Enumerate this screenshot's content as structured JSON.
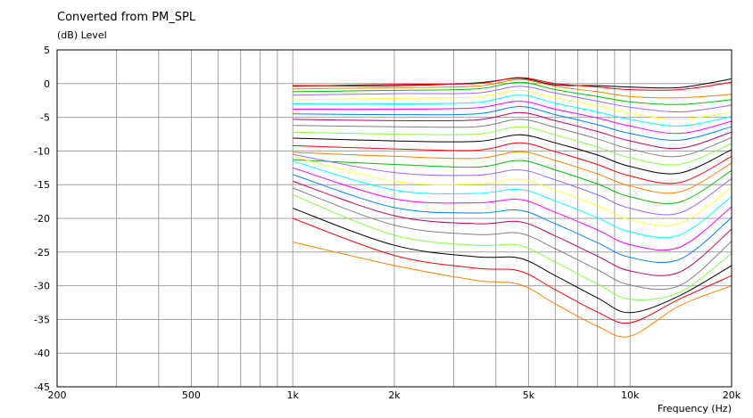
{
  "chart_data": {
    "type": "line",
    "title": "Converted from PM_SPL",
    "ylabel": "(dB)  Level",
    "xlabel": "Frequency  (Hz)",
    "x_scale": "log",
    "xlim": [
      200,
      20000
    ],
    "ylim": [
      -45,
      5
    ],
    "grid": true,
    "y_ticks": [
      "5",
      "0",
      "-5",
      "-10",
      "-15",
      "-20",
      "-25",
      "-30",
      "-35",
      "-40",
      "-45"
    ],
    "x_ticks": [
      "200",
      "500",
      "1k",
      "2k",
      "5k",
      "10k",
      "20k"
    ],
    "x_tick_values": [
      200,
      500,
      1000,
      2000,
      5000,
      10000,
      20000
    ],
    "x_minor_grid": [
      300,
      400,
      600,
      700,
      800,
      900,
      3000,
      4000,
      6000,
      7000,
      8000,
      9000
    ],
    "series_colors": [
      "#000000",
      "#ff0000",
      "#ff8000",
      "#00c000",
      "#9966ff",
      "#ffff40",
      "#00ffff",
      "#ff00ff",
      "#0080ff",
      "#c00060",
      "#808080",
      "#80ff40"
    ],
    "series_x": [
      1000,
      2000,
      3500,
      4700,
      6000,
      8000,
      10000,
      14000,
      20000
    ],
    "series": [
      {
        "values": [
          -0.3,
          -0.3,
          0.1,
          0.8,
          -0.2,
          -0.3,
          -0.5,
          -0.6,
          0.7
        ]
      },
      {
        "values": [
          -0.4,
          -0.1,
          0.0,
          0.9,
          0.0,
          -0.5,
          -0.9,
          -0.9,
          0.2
        ]
      },
      {
        "values": [
          -0.8,
          -0.6,
          -0.4,
          0.6,
          -0.4,
          -1.2,
          -1.9,
          -2.1,
          -1.6
        ]
      },
      {
        "values": [
          -1.2,
          -1.0,
          -0.8,
          0.2,
          -0.9,
          -1.9,
          -2.7,
          -3.1,
          -2.4
        ]
      },
      {
        "values": [
          -1.7,
          -1.5,
          -1.4,
          -0.4,
          -1.4,
          -2.6,
          -3.5,
          -4.2,
          -3.2
        ]
      },
      {
        "values": [
          -2.4,
          -2.2,
          -2.0,
          -1.0,
          -2.1,
          -3.3,
          -4.4,
          -5.3,
          -4.2
        ]
      },
      {
        "values": [
          -3.0,
          -3.0,
          -2.8,
          -1.7,
          -2.9,
          -4.2,
          -5.3,
          -6.3,
          -4.9
        ]
      },
      {
        "values": [
          -3.8,
          -3.8,
          -3.6,
          -2.6,
          -3.8,
          -5.1,
          -6.3,
          -7.4,
          -5.6
        ]
      },
      {
        "values": [
          -4.5,
          -4.6,
          -4.5,
          -3.4,
          -4.6,
          -6.1,
          -7.4,
          -8.4,
          -6.4
        ]
      },
      {
        "values": [
          -5.3,
          -5.5,
          -5.4,
          -4.3,
          -5.5,
          -7.1,
          -8.5,
          -9.6,
          -7.2
        ]
      },
      {
        "values": [
          -6.2,
          -6.4,
          -6.4,
          -5.3,
          -6.5,
          -8.2,
          -9.7,
          -10.8,
          -8.0
        ]
      },
      {
        "values": [
          -7.2,
          -7.5,
          -7.5,
          -6.4,
          -7.6,
          -9.4,
          -11.0,
          -12.0,
          -8.9
        ]
      },
      {
        "values": [
          -8.1,
          -8.5,
          -8.6,
          -7.6,
          -8.8,
          -10.6,
          -12.3,
          -13.3,
          -9.8
        ]
      },
      {
        "values": [
          -9.2,
          -9.7,
          -9.9,
          -8.8,
          -10.1,
          -12.0,
          -13.7,
          -14.7,
          -10.8
        ]
      },
      {
        "values": [
          -10.2,
          -10.8,
          -11.1,
          -10.1,
          -11.4,
          -13.4,
          -15.2,
          -16.1,
          -11.8
        ]
      },
      {
        "values": [
          -11.3,
          -12.0,
          -12.4,
          -11.4,
          -12.8,
          -14.9,
          -16.8,
          -17.6,
          -12.9
        ]
      },
      {
        "values": [
          -10.5,
          -13.2,
          -13.6,
          -12.8,
          -14.3,
          -16.5,
          -18.5,
          -19.2,
          -14.1
        ]
      },
      {
        "values": [
          -10.8,
          -14.5,
          -14.9,
          -14.2,
          -15.8,
          -18.1,
          -20.2,
          -20.8,
          -15.4
        ]
      },
      {
        "values": [
          -11.5,
          -15.8,
          -16.3,
          -15.7,
          -17.4,
          -19.9,
          -22.0,
          -22.5,
          -16.8
        ]
      },
      {
        "values": [
          -12.5,
          -17.1,
          -17.7,
          -17.2,
          -19.1,
          -21.7,
          -23.9,
          -24.3,
          -18.3
        ]
      },
      {
        "values": [
          -13.5,
          -18.4,
          -19.2,
          -18.8,
          -20.8,
          -23.6,
          -25.8,
          -26.1,
          -19.9
        ]
      },
      {
        "values": [
          -14.5,
          -19.6,
          -20.8,
          -20.5,
          -22.6,
          -25.6,
          -27.8,
          -28.0,
          -21.6
        ]
      },
      {
        "values": [
          -15.5,
          -21.0,
          -22.4,
          -22.2,
          -24.5,
          -27.6,
          -29.9,
          -30.0,
          -23.4
        ]
      },
      {
        "values": [
          -16.5,
          -22.5,
          -24.0,
          -24.0,
          -26.5,
          -29.7,
          -32.0,
          -31.0,
          -25.2
        ]
      },
      {
        "values": [
          -18.5,
          -24.0,
          -25.7,
          -25.9,
          -28.5,
          -31.8,
          -34.0,
          -31.5,
          -27.0
        ]
      },
      {
        "values": [
          -20.0,
          -25.5,
          -27.4,
          -27.8,
          -30.6,
          -33.9,
          -35.5,
          -32.0,
          -28.5
        ]
      },
      {
        "values": [
          -23.5,
          -27.0,
          -29.2,
          -29.8,
          -32.7,
          -36.0,
          -37.5,
          -33.0,
          -30.0
        ]
      }
    ]
  }
}
